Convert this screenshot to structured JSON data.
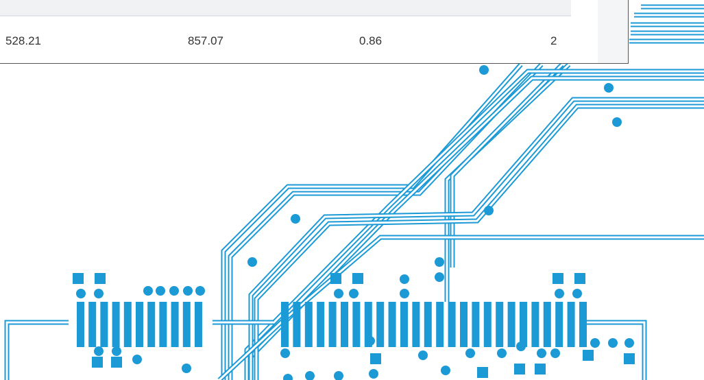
{
  "table": {
    "rows": [
      [
        "528.21",
        "857.07",
        "0.86",
        "2"
      ]
    ]
  }
}
